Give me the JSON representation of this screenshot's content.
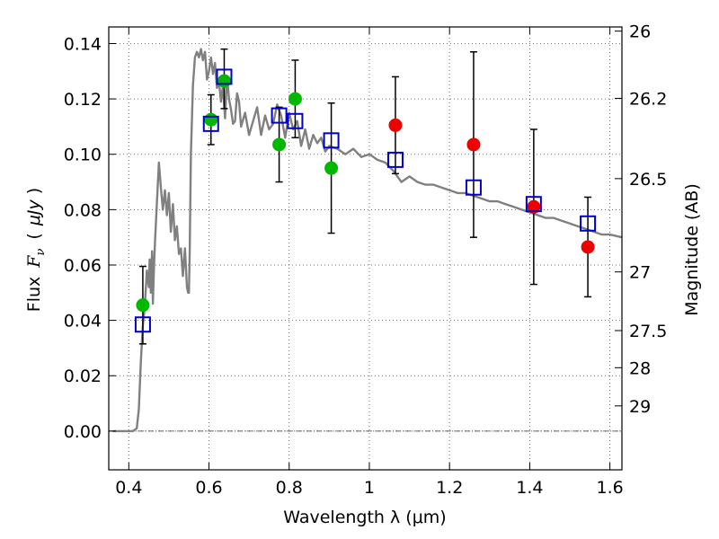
{
  "chart_data": {
    "type": "scatter",
    "title": "",
    "xlabel": "Wavelength  λ (μm)",
    "ylabel": "Flux  F_ν  ( μJy )",
    "ylabel_parts": {
      "prefix": "Flux",
      "symbol": "F",
      "subscript": "ν",
      "unit_open": "(",
      "unit": "μJy",
      "unit_close": ")"
    },
    "ylabel_right": "Magnitude (AB)",
    "xlim": [
      0.35,
      1.63
    ],
    "ylim": [
      -0.014,
      0.146
    ],
    "grid": true,
    "x_ticks": [
      0.4,
      0.6,
      0.8,
      1.0,
      1.2,
      1.4,
      1.6
    ],
    "x_tick_labels": [
      "0.4",
      "0.6",
      "0.8",
      "1",
      "1.2",
      "1.4",
      "1.6"
    ],
    "y_ticks": [
      0.0,
      0.02,
      0.04,
      0.06,
      0.08,
      0.1,
      0.12,
      0.14
    ],
    "y_tick_labels": [
      "0.00",
      "0.02",
      "0.04",
      "0.06",
      "0.08",
      "0.10",
      "0.12",
      "0.14"
    ],
    "right_ticks": [
      {
        "label": "26",
        "flux": 0.1445
      },
      {
        "label": "26.2",
        "flux": 0.1202
      },
      {
        "label": "26.5",
        "flux": 0.0912
      },
      {
        "label": "27",
        "flux": 0.0575
      },
      {
        "label": "27.5",
        "flux": 0.0363
      },
      {
        "label": "28",
        "flux": 0.0229
      },
      {
        "label": "29",
        "flux": 0.0091
      }
    ],
    "series": [
      {
        "name": "model spectrum",
        "kind": "line",
        "color": "#808080",
        "x": [
          0.36,
          0.4,
          0.41,
          0.42,
          0.425,
          0.43,
          0.435,
          0.44,
          0.445,
          0.45,
          0.452,
          0.455,
          0.458,
          0.46,
          0.463,
          0.466,
          0.47,
          0.475,
          0.48,
          0.485,
          0.49,
          0.495,
          0.5,
          0.505,
          0.51,
          0.515,
          0.52,
          0.525,
          0.53,
          0.535,
          0.54,
          0.545,
          0.548,
          0.55,
          0.552,
          0.555,
          0.56,
          0.565,
          0.57,
          0.575,
          0.58,
          0.585,
          0.59,
          0.595,
          0.6,
          0.605,
          0.61,
          0.615,
          0.62,
          0.625,
          0.63,
          0.635,
          0.64,
          0.645,
          0.65,
          0.655,
          0.66,
          0.665,
          0.67,
          0.675,
          0.68,
          0.69,
          0.7,
          0.71,
          0.72,
          0.73,
          0.74,
          0.75,
          0.76,
          0.77,
          0.78,
          0.79,
          0.8,
          0.81,
          0.82,
          0.83,
          0.84,
          0.85,
          0.86,
          0.87,
          0.88,
          0.89,
          0.9,
          0.92,
          0.94,
          0.96,
          0.98,
          1.0,
          1.02,
          1.04,
          1.06,
          1.08,
          1.1,
          1.12,
          1.14,
          1.16,
          1.18,
          1.2,
          1.22,
          1.24,
          1.26,
          1.28,
          1.3,
          1.32,
          1.34,
          1.36,
          1.38,
          1.4,
          1.42,
          1.44,
          1.46,
          1.48,
          1.5,
          1.52,
          1.54,
          1.56,
          1.58,
          1.6,
          1.63
        ],
        "y": [
          0.0,
          0.0,
          0.0,
          0.001,
          0.008,
          0.025,
          0.038,
          0.045,
          0.058,
          0.052,
          0.062,
          0.05,
          0.065,
          0.046,
          0.06,
          0.07,
          0.082,
          0.097,
          0.088,
          0.08,
          0.087,
          0.078,
          0.086,
          0.072,
          0.082,
          0.069,
          0.074,
          0.064,
          0.066,
          0.056,
          0.066,
          0.052,
          0.05,
          0.05,
          0.065,
          0.1,
          0.125,
          0.135,
          0.137,
          0.135,
          0.138,
          0.134,
          0.137,
          0.127,
          0.13,
          0.135,
          0.129,
          0.133,
          0.124,
          0.126,
          0.119,
          0.125,
          0.113,
          0.128,
          0.12,
          0.116,
          0.111,
          0.112,
          0.122,
          0.119,
          0.11,
          0.115,
          0.107,
          0.112,
          0.117,
          0.107,
          0.114,
          0.109,
          0.111,
          0.118,
          0.114,
          0.106,
          0.115,
          0.109,
          0.112,
          0.103,
          0.109,
          0.102,
          0.107,
          0.104,
          0.106,
          0.101,
          0.103,
          0.102,
          0.1,
          0.102,
          0.099,
          0.1,
          0.098,
          0.097,
          0.094,
          0.09,
          0.092,
          0.09,
          0.089,
          0.089,
          0.088,
          0.087,
          0.086,
          0.086,
          0.085,
          0.084,
          0.083,
          0.083,
          0.082,
          0.081,
          0.08,
          0.079,
          0.078,
          0.077,
          0.077,
          0.076,
          0.075,
          0.074,
          0.073,
          0.072,
          0.071,
          0.071,
          0.07
        ]
      },
      {
        "name": "model photometry",
        "kind": "open-square",
        "color": "#0000cc",
        "x": [
          0.435,
          0.605,
          0.638,
          0.775,
          0.815,
          0.905,
          1.065,
          1.26,
          1.41,
          1.545
        ],
        "y": [
          0.0385,
          0.111,
          0.128,
          0.114,
          0.112,
          0.105,
          0.098,
          0.088,
          0.082,
          0.075
        ]
      },
      {
        "name": "observed (green)",
        "kind": "filled-circle",
        "color": "#00b800",
        "x": [
          0.435,
          0.605,
          0.638,
          0.775,
          0.815,
          0.905
        ],
        "y": [
          0.0455,
          0.1125,
          0.1265,
          0.1035,
          0.12,
          0.095
        ],
        "yerr_low": [
          0.014,
          0.009,
          0.01,
          0.0135,
          0.014,
          0.0235
        ],
        "yerr_high": [
          0.014,
          0.009,
          0.0115,
          0.0135,
          0.014,
          0.0235
        ]
      },
      {
        "name": "observed (red)",
        "kind": "filled-circle",
        "color": "#ee0000",
        "x": [
          1.065,
          1.26,
          1.41,
          1.545
        ],
        "y": [
          0.1105,
          0.1035,
          0.081,
          0.0665
        ],
        "yerr_low": [
          0.0175,
          0.0335,
          0.028,
          0.018
        ],
        "yerr_high": [
          0.0175,
          0.0335,
          0.028,
          0.018
        ]
      }
    ]
  }
}
